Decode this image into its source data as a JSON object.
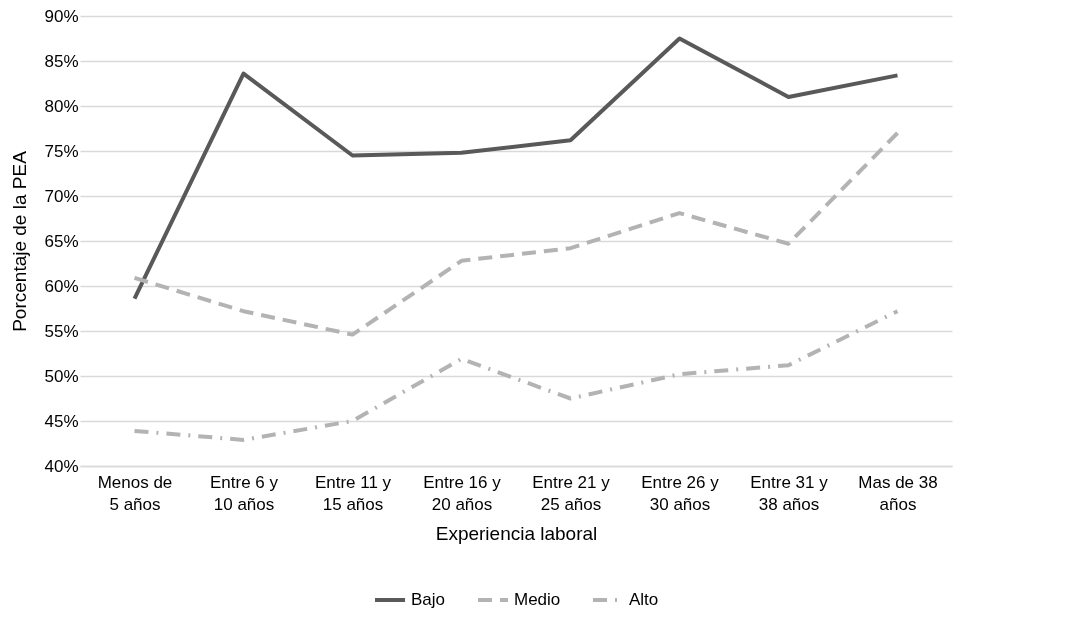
{
  "chart_data": {
    "type": "line",
    "xlabel": "Experiencia laboral",
    "ylabel": "Porcentaje de la PEA",
    "categories": [
      "Menos de 5 años",
      "Entre 6 y 10 años",
      "Entre 11 y 15 años",
      "Entre 16 y 20 años",
      "Entre 21 y 25 años",
      "Entre 26 y 30 años",
      "Entre 31 y 38 años",
      "Mas de 38 años"
    ],
    "series": [
      {
        "name": "Bajo",
        "color": "#595959",
        "line_style": "solid",
        "values": [
          58.6,
          83.6,
          74.5,
          74.8,
          76.2,
          87.5,
          81.0,
          83.4
        ]
      },
      {
        "name": "Medio",
        "color": "#b3b3b3",
        "line_style": "dashed",
        "values": [
          60.9,
          57.2,
          54.6,
          62.8,
          64.2,
          68.1,
          64.7,
          77.0
        ]
      },
      {
        "name": "Alto",
        "color": "#b3b3b3",
        "line_style": "dashdot",
        "values": [
          43.9,
          42.9,
          45.0,
          51.9,
          47.5,
          50.2,
          51.2,
          57.2
        ]
      }
    ],
    "ylim": [
      40,
      90
    ],
    "yticks": [
      {
        "value": 40,
        "label": "40%"
      },
      {
        "value": 45,
        "label": "45%"
      },
      {
        "value": 50,
        "label": "50%"
      },
      {
        "value": 55,
        "label": "55%"
      },
      {
        "value": 60,
        "label": "60%"
      },
      {
        "value": 65,
        "label": "65%"
      },
      {
        "value": 70,
        "label": "70%"
      },
      {
        "value": 75,
        "label": "75%"
      },
      {
        "value": 80,
        "label": "80%"
      },
      {
        "value": 85,
        "label": "85%"
      },
      {
        "value": 90,
        "label": "90%"
      }
    ],
    "grid": "y",
    "legend": "bottom"
  }
}
